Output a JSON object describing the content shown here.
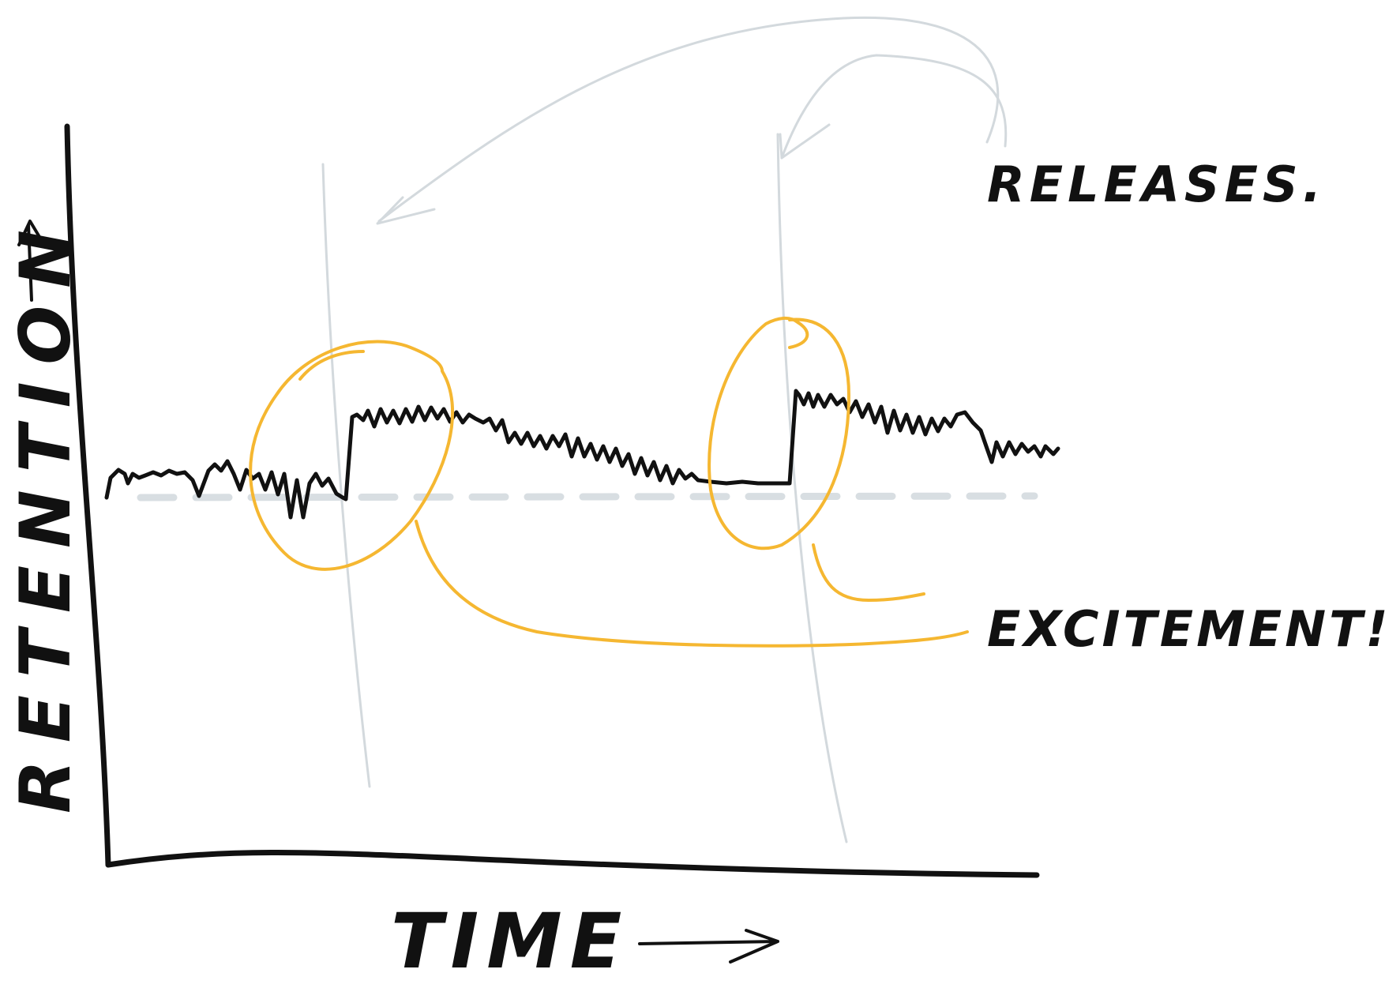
{
  "labels": {
    "y_axis": "RETENTION",
    "x_axis": "TIME",
    "releases": "RELEASES.",
    "excitement": "EXCITEMENT!"
  },
  "colors": {
    "ink": "#111111",
    "highlight": "#F5B731",
    "annotation_gray": "#D3D9DD",
    "baseline_dash": "#D8DEE2"
  },
  "icons": {
    "y_arrow": "arrow-up-icon",
    "x_arrow": "arrow-right-icon"
  }
}
